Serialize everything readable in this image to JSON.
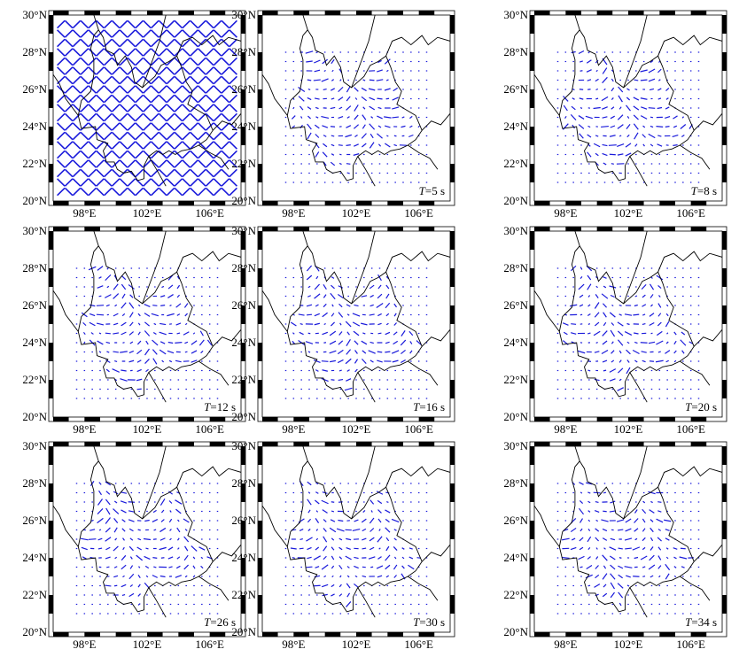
{
  "figure": {
    "lat_ticks": [
      "20°N",
      "22°N",
      "24°N",
      "26°N",
      "28°N",
      "30°N"
    ],
    "lon_ticks": [
      "98°E",
      "102°E",
      "106°E"
    ],
    "colors": {
      "bars": "#1a1adb",
      "border": "#000000",
      "frame_dark": "#000000",
      "frame_light": "#ffffff"
    },
    "extent": {
      "lon": [
        96,
        108
      ],
      "lat": [
        20,
        30
      ]
    },
    "grid_step_deg": 0.5,
    "panels": [
      {
        "id": "initial",
        "period_label": "",
        "mode": "dense"
      },
      {
        "id": "t5",
        "period_label": "T=5 s",
        "mode": "region"
      },
      {
        "id": "t8",
        "period_label": "T=8 s",
        "mode": "region"
      },
      {
        "id": "t12",
        "period_label": "T=12 s",
        "mode": "region"
      },
      {
        "id": "t16",
        "period_label": "T=16 s",
        "mode": "region"
      },
      {
        "id": "t20",
        "period_label": "T=20 s",
        "mode": "region"
      },
      {
        "id": "t26",
        "period_label": "T=26 s",
        "mode": "region"
      },
      {
        "id": "t30",
        "period_label": "T=30 s",
        "mode": "region"
      },
      {
        "id": "t34",
        "period_label": "T=34 s",
        "mode": "region"
      }
    ]
  }
}
